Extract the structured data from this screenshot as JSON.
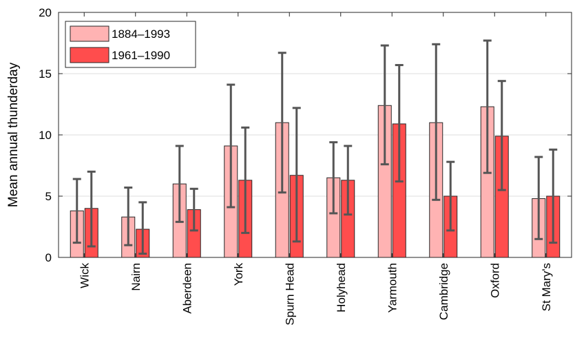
{
  "chart_data": {
    "type": "bar",
    "title": "",
    "xlabel": "",
    "ylabel": "Mean annual thunderday",
    "ylim": [
      0,
      20
    ],
    "yticks": [
      0,
      5,
      10,
      15,
      20
    ],
    "grid": true,
    "legend_position": "top-left",
    "categories": [
      "Wick",
      "Nairn",
      "Aberdeen",
      "York",
      "Spurn Head",
      "Holyhead",
      "Yarmouth",
      "Cambridge",
      "Oxford",
      "St Mary's"
    ],
    "series": [
      {
        "name": "1884–1993",
        "color": "#ffb3b3",
        "values": [
          3.8,
          3.3,
          6.0,
          9.1,
          11.0,
          6.5,
          12.4,
          11.0,
          12.3,
          4.8
        ],
        "err_low": [
          1.2,
          1.0,
          2.9,
          4.1,
          5.3,
          3.6,
          7.6,
          4.7,
          6.9,
          1.5
        ],
        "err_high": [
          6.4,
          5.7,
          9.1,
          14.1,
          16.7,
          9.4,
          17.3,
          17.4,
          17.7,
          8.2
        ]
      },
      {
        "name": "1961–1990",
        "color": "#ff4d4d",
        "values": [
          4.0,
          2.3,
          3.9,
          6.3,
          6.7,
          6.3,
          10.9,
          5.0,
          9.9,
          5.0
        ],
        "err_low": [
          0.9,
          0.3,
          2.2,
          2.0,
          1.3,
          3.5,
          6.2,
          2.2,
          5.5,
          1.2
        ],
        "err_high": [
          7.0,
          4.5,
          5.6,
          10.6,
          12.2,
          9.1,
          15.7,
          7.8,
          14.4,
          8.8
        ]
      }
    ]
  }
}
